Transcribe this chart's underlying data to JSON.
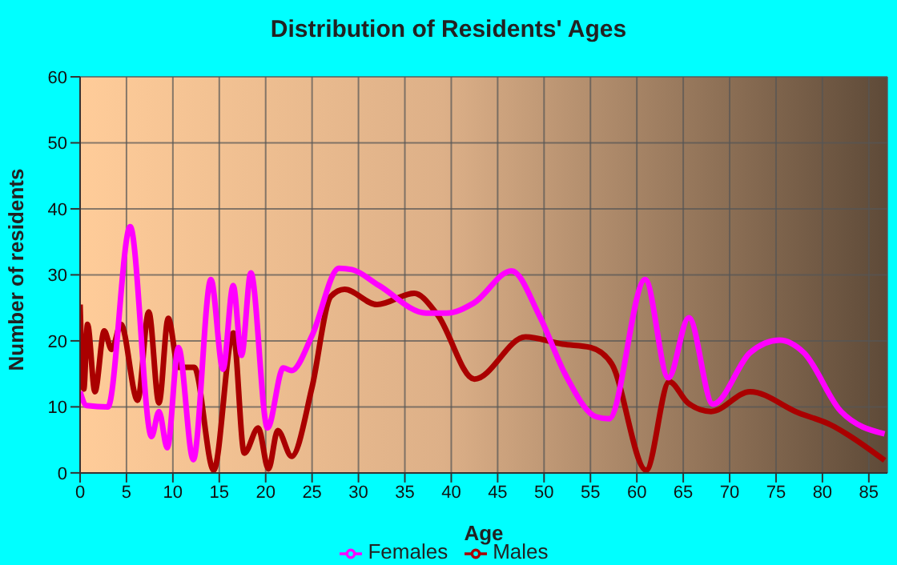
{
  "chart_data": {
    "type": "line",
    "title": "Distribution of Residents' Ages",
    "xlabel": "Age",
    "ylabel": "Number of residents",
    "xlim": [
      0,
      87
    ],
    "xticks": [
      0,
      5,
      10,
      15,
      20,
      25,
      30,
      35,
      40,
      45,
      50,
      55,
      60,
      65,
      70,
      75,
      80,
      85
    ],
    "ylim": [
      0,
      60
    ],
    "yticks": [
      0,
      10,
      20,
      30,
      40,
      50,
      60
    ],
    "grid": true,
    "legend": "bottom",
    "marker": "none",
    "line_style": "solid",
    "series": [
      {
        "name": "Males",
        "color": "#aa0000",
        "x": [
          0,
          0.4,
          0.8,
          1.6,
          2.6,
          3.4,
          4.4,
          6.2,
          7.4,
          8.5,
          9.5,
          10.6,
          12.3,
          14.4,
          16.5,
          17.7,
          19.2,
          20.3,
          21.3,
          22.8,
          25,
          27,
          28.5,
          32,
          36,
          38.5,
          42.5,
          48,
          52,
          55,
          57.3,
          61,
          63.5,
          65.5,
          68,
          72.2,
          77.4,
          81,
          82.5,
          86.7
        ],
        "values": [
          25.5,
          12.7,
          22.5,
          12.3,
          21.5,
          18.7,
          22.5,
          11,
          24.4,
          10.6,
          23.4,
          16,
          16,
          0.4,
          21.2,
          3,
          6.8,
          0.6,
          6.4,
          2.5,
          13,
          26.7,
          27.8,
          25.5,
          27.2,
          24,
          14.2,
          20.6,
          19.5,
          19,
          16.5,
          0.4,
          13.8,
          10.6,
          9.3,
          12.3,
          9.1,
          7.2,
          6,
          1.9
        ]
      },
      {
        "name": "Females",
        "color": "#ff00ff",
        "x": [
          0,
          0.7,
          3,
          5.4,
          7.7,
          8.5,
          9.4,
          10.6,
          12.2,
          14.1,
          15.4,
          16.5,
          17.4,
          18.4,
          20.2,
          21.9,
          22.8,
          25,
          27.9,
          29.3,
          32.2,
          37.3,
          39.5,
          42.4,
          46.5,
          49.5,
          52.3,
          55.6,
          57,
          60.9,
          63.4,
          65.6,
          68.2,
          72.2,
          75.4,
          78,
          82,
          86.7
        ],
        "values": [
          12.3,
          10.2,
          10,
          37.3,
          5.5,
          9.3,
          3.8,
          19,
          2,
          29.3,
          15.7,
          28.4,
          17.8,
          30.3,
          6.8,
          15.9,
          15.5,
          20.8,
          31,
          30.8,
          28.4,
          24.2,
          24.2,
          25.7,
          30.6,
          23.8,
          14.9,
          8.5,
          8.2,
          29.3,
          14.4,
          23.5,
          10.4,
          18.2,
          20.1,
          18.2,
          9.3,
          5.9
        ]
      }
    ]
  }
}
